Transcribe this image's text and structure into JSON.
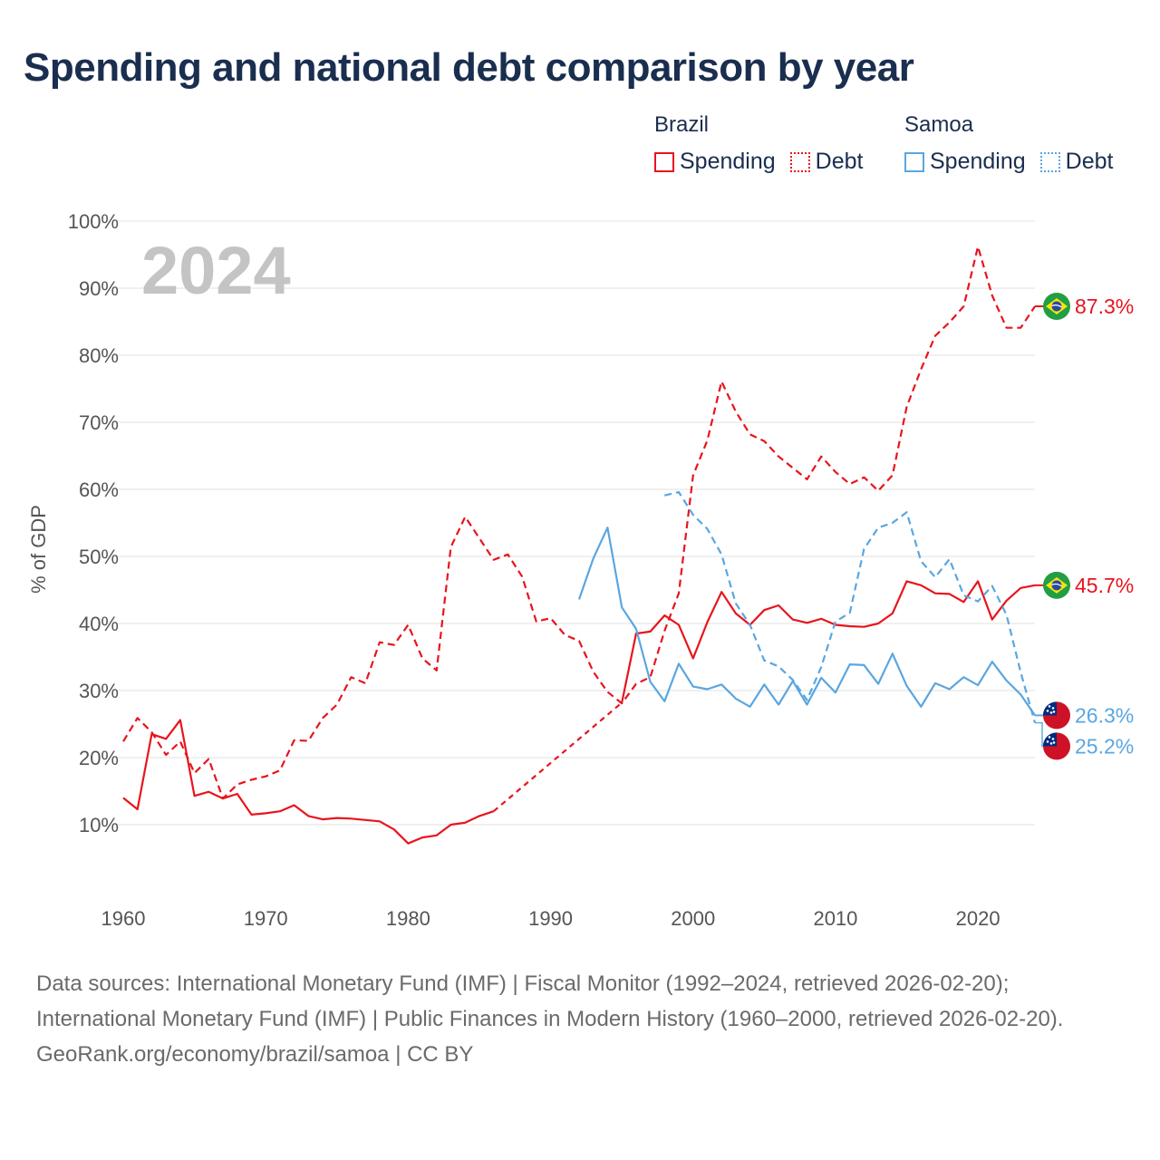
{
  "title": "Spending and national debt comparison by year",
  "legend": {
    "groups": [
      {
        "country": "Brazil",
        "color": "#e8141d",
        "items": [
          {
            "label": "Spending",
            "style": "solid"
          },
          {
            "label": "Debt",
            "style": "dotted"
          }
        ]
      },
      {
        "country": "Samoa",
        "color": "#5aa6e0",
        "items": [
          {
            "label": "Spending",
            "style": "solid"
          },
          {
            "label": "Debt",
            "style": "dotted"
          }
        ]
      }
    ]
  },
  "footer": {
    "sources": "Data sources: International Monetary Fund (IMF) | Fiscal Monitor (1992–2024, retrieved 2026-02-20); International Monetary Fund (IMF) | Public Finances in Modern History (1960–2000, retrieved 2026-02-20).",
    "credit": "GeoRank.org/economy/brazil/samoa | CC BY"
  },
  "chart_data": {
    "type": "line",
    "title": "Spending and national debt comparison by year",
    "year_label": "2024",
    "ylabel": "% of GDP",
    "xlabel": "",
    "xlim": [
      1960,
      2024
    ],
    "ylim": [
      0,
      100
    ],
    "x_ticks": [
      1960,
      1970,
      1980,
      1990,
      2000,
      2010,
      2020
    ],
    "y_ticks": [
      10,
      20,
      30,
      40,
      50,
      60,
      70,
      80,
      90,
      100
    ],
    "y_tick_suffix": "%",
    "grid": true,
    "series": [
      {
        "name": "Brazil Debt",
        "country": "Brazil",
        "measure": "Debt",
        "color": "#e8141d",
        "dash": "dashed",
        "flag": "brazil",
        "end_label": "87.3%",
        "end_label_value": 87.3,
        "points": [
          [
            1960,
            22.4
          ],
          [
            1961,
            25.9
          ],
          [
            1962,
            23.8
          ],
          [
            1963,
            20.4
          ],
          [
            1964,
            22.4
          ],
          [
            1965,
            17.7
          ],
          [
            1966,
            19.8
          ],
          [
            1967,
            13.9
          ],
          [
            1968,
            16.0
          ],
          [
            1969,
            16.7
          ],
          [
            1970,
            17.2
          ],
          [
            1971,
            18.1
          ],
          [
            1972,
            22.6
          ],
          [
            1973,
            22.5
          ],
          [
            1974,
            25.9
          ],
          [
            1975,
            27.9
          ],
          [
            1976,
            32.0
          ],
          [
            1977,
            31.1
          ],
          [
            1978,
            37.2
          ],
          [
            1979,
            36.8
          ],
          [
            1980,
            39.8
          ],
          [
            1981,
            34.8
          ],
          [
            1982,
            33.0
          ],
          [
            1983,
            51.4
          ],
          [
            1984,
            55.9
          ],
          [
            1985,
            52.7
          ],
          [
            1986,
            49.5
          ],
          [
            1987,
            50.3
          ],
          [
            1988,
            47.0
          ],
          [
            1989,
            40.3
          ],
          [
            1990,
            40.8
          ],
          [
            1991,
            38.3
          ],
          [
            1992,
            37.4
          ],
          [
            1993,
            32.8
          ],
          [
            1994,
            29.8
          ],
          [
            1995,
            28.1
          ],
          [
            1996,
            31.0
          ],
          [
            1997,
            32.0
          ],
          [
            1998,
            38.9
          ],
          [
            1999,
            44.5
          ],
          [
            2000,
            62.1
          ],
          [
            2001,
            67.3
          ],
          [
            2002,
            76.1
          ],
          [
            2003,
            71.6
          ],
          [
            2004,
            68.2
          ],
          [
            2005,
            67.2
          ],
          [
            2006,
            64.9
          ],
          [
            2007,
            63.2
          ],
          [
            2008,
            61.5
          ],
          [
            2009,
            64.9
          ],
          [
            2010,
            62.6
          ],
          [
            2011,
            60.8
          ],
          [
            2012,
            61.8
          ],
          [
            2013,
            59.8
          ],
          [
            2014,
            62.1
          ],
          [
            2015,
            72.3
          ],
          [
            2016,
            77.9
          ],
          [
            2017,
            82.9
          ],
          [
            2018,
            84.9
          ],
          [
            2019,
            87.3
          ],
          [
            2020,
            96.2
          ],
          [
            2021,
            88.9
          ],
          [
            2022,
            84.1
          ],
          [
            2023,
            84.1
          ],
          [
            2024,
            87.3
          ]
        ]
      },
      {
        "name": "Brazil Spending",
        "country": "Brazil",
        "measure": "Spending",
        "color": "#e8141d",
        "dash": "solid",
        "flag": "brazil",
        "end_label": "45.7%",
        "end_label_value": 45.7,
        "points": [
          [
            1960,
            14.0
          ],
          [
            1961,
            12.3
          ],
          [
            1962,
            23.5
          ],
          [
            1963,
            22.8
          ],
          [
            1964,
            25.6
          ],
          [
            1965,
            14.3
          ],
          [
            1966,
            14.9
          ],
          [
            1967,
            13.9
          ],
          [
            1968,
            14.6
          ],
          [
            1969,
            11.5
          ],
          [
            1970,
            11.7
          ],
          [
            1971,
            12.0
          ],
          [
            1972,
            12.9
          ],
          [
            1973,
            11.3
          ],
          [
            1974,
            10.8
          ],
          [
            1975,
            11.0
          ],
          [
            1976,
            10.9
          ],
          [
            1977,
            10.7
          ],
          [
            1978,
            10.5
          ],
          [
            1979,
            9.3
          ],
          [
            1980,
            7.2
          ],
          [
            1981,
            8.1
          ],
          [
            1982,
            8.4
          ],
          [
            1983,
            10.0
          ],
          [
            1984,
            10.3
          ],
          [
            1985,
            11.3
          ],
          [
            1986,
            12.0
          ],
          [
            1995,
            28.2
          ],
          [
            1996,
            38.5
          ],
          [
            1997,
            38.8
          ],
          [
            1998,
            41.2
          ],
          [
            1999,
            39.8
          ],
          [
            2000,
            34.8
          ],
          [
            2001,
            40.2
          ],
          [
            2002,
            44.7
          ],
          [
            2003,
            41.5
          ],
          [
            2004,
            39.8
          ],
          [
            2005,
            42.0
          ],
          [
            2006,
            42.7
          ],
          [
            2007,
            40.6
          ],
          [
            2008,
            40.1
          ],
          [
            2009,
            40.7
          ],
          [
            2010,
            39.8
          ],
          [
            2011,
            39.6
          ],
          [
            2012,
            39.5
          ],
          [
            2013,
            40.0
          ],
          [
            2014,
            41.5
          ],
          [
            2015,
            46.3
          ],
          [
            2016,
            45.7
          ],
          [
            2017,
            44.5
          ],
          [
            2018,
            44.4
          ],
          [
            2019,
            43.2
          ],
          [
            2020,
            46.3
          ],
          [
            2021,
            40.6
          ],
          [
            2022,
            43.4
          ],
          [
            2023,
            45.3
          ],
          [
            2024,
            45.7
          ]
        ],
        "bridge": [
          [
            1986,
            12.0
          ],
          [
            1995,
            28.2
          ]
        ]
      },
      {
        "name": "Samoa Debt",
        "country": "Samoa",
        "measure": "Debt",
        "color": "#5aa6e0",
        "dash": "dashed",
        "flag": "samoa",
        "end_label": "25.2%",
        "end_label_value": 25.2,
        "points": [
          [
            1998,
            59.1
          ],
          [
            1999,
            59.6
          ],
          [
            2000,
            56.2
          ],
          [
            2001,
            54.1
          ],
          [
            2002,
            50.3
          ],
          [
            2003,
            43.0
          ],
          [
            2004,
            39.8
          ],
          [
            2005,
            34.5
          ],
          [
            2006,
            33.6
          ],
          [
            2007,
            31.6
          ],
          [
            2008,
            28.6
          ],
          [
            2009,
            33.5
          ],
          [
            2010,
            40.3
          ],
          [
            2011,
            41.6
          ],
          [
            2012,
            51.1
          ],
          [
            2013,
            54.3
          ],
          [
            2014,
            55.0
          ],
          [
            2015,
            56.6
          ],
          [
            2016,
            49.3
          ],
          [
            2017,
            46.9
          ],
          [
            2018,
            49.6
          ],
          [
            2019,
            44.2
          ],
          [
            2020,
            43.3
          ],
          [
            2021,
            45.6
          ],
          [
            2022,
            41.3
          ],
          [
            2023,
            32.7
          ],
          [
            2024,
            25.2
          ]
        ]
      },
      {
        "name": "Samoa Spending",
        "country": "Samoa",
        "measure": "Spending",
        "color": "#5aa6e0",
        "dash": "solid",
        "flag": "samoa",
        "end_label": "26.3%",
        "end_label_value": 26.3,
        "points": [
          [
            1992,
            43.6
          ],
          [
            1993,
            49.7
          ],
          [
            1994,
            54.3
          ],
          [
            1995,
            42.4
          ],
          [
            1996,
            39.2
          ],
          [
            1997,
            31.3
          ],
          [
            1998,
            28.4
          ],
          [
            1999,
            34.0
          ],
          [
            2000,
            30.6
          ],
          [
            2001,
            30.2
          ],
          [
            2002,
            30.9
          ],
          [
            2003,
            28.8
          ],
          [
            2004,
            27.6
          ],
          [
            2005,
            30.9
          ],
          [
            2006,
            27.9
          ],
          [
            2007,
            31.4
          ],
          [
            2008,
            27.9
          ],
          [
            2009,
            31.9
          ],
          [
            2010,
            29.7
          ],
          [
            2011,
            33.9
          ],
          [
            2012,
            33.8
          ],
          [
            2013,
            31.0
          ],
          [
            2014,
            35.5
          ],
          [
            2015,
            30.7
          ],
          [
            2016,
            27.6
          ],
          [
            2017,
            31.1
          ],
          [
            2018,
            30.2
          ],
          [
            2019,
            32.0
          ],
          [
            2020,
            30.8
          ],
          [
            2021,
            34.3
          ],
          [
            2022,
            31.5
          ],
          [
            2023,
            29.4
          ],
          [
            2024,
            26.3
          ]
        ]
      }
    ]
  }
}
